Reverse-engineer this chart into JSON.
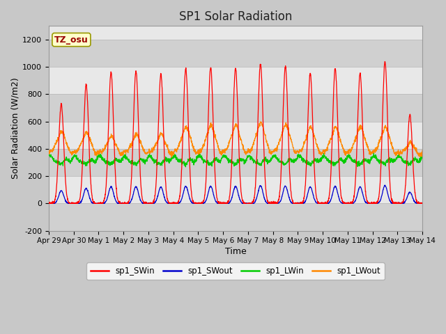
{
  "title": "SP1 Solar Radiation",
  "xlabel": "Time",
  "ylabel": "Solar Radiation (W/m2)",
  "ylim": [
    -200,
    1300
  ],
  "yticks": [
    -200,
    0,
    200,
    400,
    600,
    800,
    1000,
    1200
  ],
  "fig_facecolor": "#c8c8c8",
  "plot_facecolor": "#e8e8e8",
  "annotation_text": "TZ_osu",
  "annotation_bg": "#ffffcc",
  "annotation_border": "#999900",
  "legend_entries": [
    "sp1_SWin",
    "sp1_SWout",
    "sp1_LWin",
    "sp1_LWout"
  ],
  "legend_colors": [
    "#ff0000",
    "#0000cc",
    "#00cc00",
    "#ff8800"
  ],
  "line_colors": {
    "SWin": "#ff0000",
    "SWout": "#0000cc",
    "LWin": "#00cc00",
    "LWout": "#ff8800"
  },
  "n_days": 15,
  "x_tick_labels": [
    "Apr 29",
    "Apr 30",
    "May 1",
    "May 2",
    "May 3",
    "May 4",
    "May 5",
    "May 6",
    "May 7",
    "May 8",
    "May 9",
    "May 10",
    "May 11",
    "May 12",
    "May 13",
    "May 14"
  ],
  "x_tick_positions": [
    0,
    1,
    2,
    3,
    4,
    5,
    6,
    7,
    8,
    9,
    10,
    11,
    12,
    13,
    14,
    15
  ],
  "peak_heights_SWin": [
    730,
    870,
    960,
    970,
    950,
    990,
    1000,
    990,
    1025,
    1005,
    955,
    990,
    950,
    1040,
    650
  ],
  "LWout_peaks": [
    510,
    505,
    475,
    490,
    490,
    545,
    555,
    555,
    575,
    560,
    540,
    540,
    545,
    540,
    430
  ],
  "grid_colors": [
    "#d8d8d8",
    "#f0f0f0"
  ]
}
